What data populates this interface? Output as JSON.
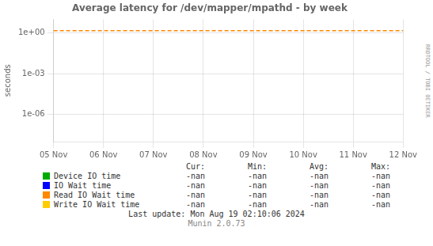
{
  "chart_data": {
    "type": "line",
    "title": "Average latency for /dev/mapper/mpathd - by week",
    "y_label": "seconds",
    "categories": [
      "05 Nov",
      "06 Nov",
      "07 Nov",
      "08 Nov",
      "09 Nov",
      "10 Nov",
      "11 Nov",
      "12 Nov"
    ],
    "series": [
      {
        "name": "Device IO time",
        "color": "#00aa00",
        "values": [
          null,
          null,
          null,
          null,
          null,
          null,
          null,
          null
        ]
      },
      {
        "name": "IO Wait time",
        "color": "#0000ff",
        "values": [
          null,
          null,
          null,
          null,
          null,
          null,
          null,
          null
        ]
      },
      {
        "name": "Read IO Wait time",
        "color": "#ff8800",
        "values": [
          null,
          null,
          null,
          null,
          null,
          null,
          null,
          null
        ]
      },
      {
        "name": "Write IO Wait time",
        "color": "#ffcc00",
        "values": [
          null,
          null,
          null,
          null,
          null,
          null,
          null,
          null
        ]
      },
      {
        "color": "#ff8800",
        "line_style": "dashed",
        "values": [
          1.45,
          1.45,
          1.45,
          1.45,
          1.45,
          1.45,
          1.45,
          1.45
        ]
      }
    ],
    "log": "y",
    "ylim": [
      1e-08,
      10
    ],
    "yticks": [
      {
        "value": 1e-06,
        "label": "1e-06"
      },
      {
        "value": 0.001,
        "label": "1e-03"
      },
      {
        "value": 1,
        "label": "1e+00"
      }
    ],
    "grid": true,
    "legend": "bottom",
    "table": {
      "columns": [
        "Cur:",
        "Min:",
        "Avg:",
        "Max:"
      ],
      "rows": [
        [
          "-nan",
          "-nan",
          "-nan",
          "-nan"
        ],
        [
          "-nan",
          "-nan",
          "-nan",
          "-nan"
        ],
        [
          "-nan",
          "-nan",
          "-nan",
          "-nan"
        ],
        [
          "-nan",
          "-nan",
          "-nan",
          "-nan"
        ]
      ]
    },
    "annotations": [
      "RRDTOOL / TOBI OETIKER",
      "Last update: Mon Aug 19 02:10:06 2024",
      "Munin 2.0.73"
    ]
  }
}
